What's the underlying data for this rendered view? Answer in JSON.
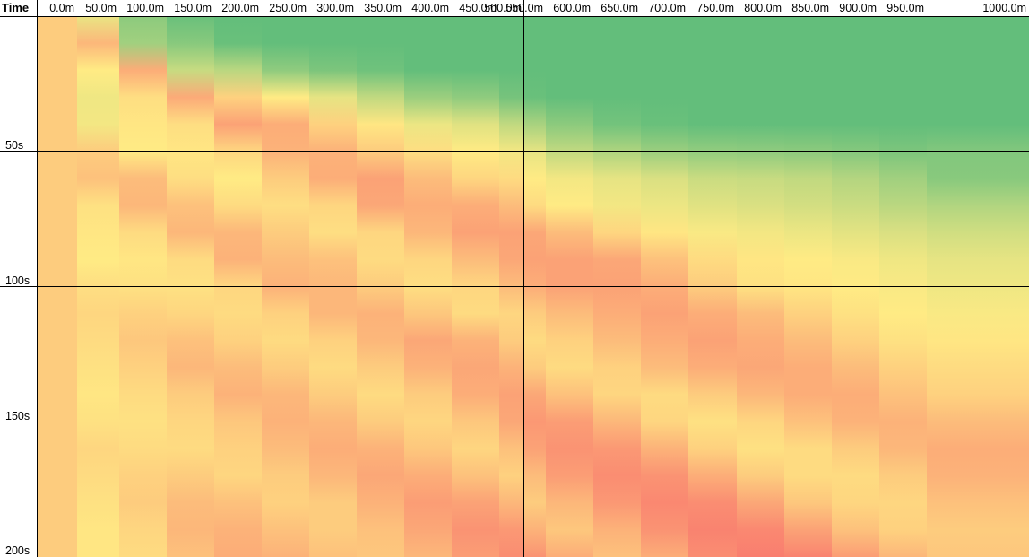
{
  "chart_data": {
    "type": "heatmap",
    "corner_label": "Time",
    "x_tick_labels": [
      "0.0m",
      "50.0m",
      "100.0m",
      "150.0m",
      "200.0m",
      "250.0m",
      "300.0m",
      "350.0m",
      "400.0m",
      "450.0m",
      "500.0m",
      "550.0m",
      "600.0m",
      "650.0m",
      "700.0m",
      "750.0m",
      "800.0m",
      "850.0m",
      "900.0m",
      "950.0m",
      "1000.0m"
    ],
    "x_values_m": [
      0,
      50,
      100,
      150,
      200,
      250,
      300,
      350,
      400,
      450,
      500,
      550,
      600,
      650,
      700,
      750,
      800,
      850,
      900,
      950,
      1000
    ],
    "y_tick_labels": [
      "50s",
      "100s",
      "150s",
      "200s"
    ],
    "y_tick_values_s": [
      50,
      100,
      150,
      200
    ],
    "y_range_s": [
      0,
      200
    ],
    "row_sample_times_s": [
      0,
      10,
      20,
      30,
      40,
      50,
      60,
      70,
      80,
      90,
      100,
      110,
      120,
      130,
      140,
      150,
      160,
      170,
      180,
      190,
      200
    ],
    "color_scale": {
      "stops": [
        "#63be7b",
        "#ffeb84",
        "#f8696b"
      ],
      "domain": [
        0,
        1
      ],
      "low": "green",
      "mid": "yellow",
      "high": "red"
    },
    "grid": "major lines every 50s and at 500.0m",
    "values": [
      [
        0.62,
        0.43,
        0.13,
        0.02,
        0.0,
        0.0,
        0.0,
        0.0,
        0.0,
        0.0,
        0.0,
        0.0,
        0.0,
        0.0,
        0.0,
        0.0,
        0.0,
        0.0,
        0.0,
        0.0,
        0.0
      ],
      [
        0.62,
        0.7,
        0.2,
        0.12,
        0.02,
        0.0,
        0.0,
        0.0,
        0.0,
        0.0,
        0.0,
        0.0,
        0.0,
        0.0,
        0.0,
        0.0,
        0.0,
        0.0,
        0.0,
        0.0,
        0.0
      ],
      [
        0.62,
        0.5,
        0.74,
        0.32,
        0.28,
        0.14,
        0.08,
        0.04,
        0.0,
        0.0,
        0.0,
        0.0,
        0.0,
        0.0,
        0.0,
        0.0,
        0.0,
        0.0,
        0.0,
        0.0,
        0.0
      ],
      [
        0.62,
        0.45,
        0.55,
        0.75,
        0.6,
        0.5,
        0.42,
        0.3,
        0.18,
        0.14,
        0.06,
        0.02,
        0.0,
        0.0,
        0.0,
        0.0,
        0.0,
        0.0,
        0.0,
        0.0,
        0.0
      ],
      [
        0.62,
        0.46,
        0.52,
        0.55,
        0.78,
        0.74,
        0.6,
        0.52,
        0.44,
        0.4,
        0.3,
        0.22,
        0.13,
        0.05,
        0.02,
        0.0,
        0.0,
        0.0,
        0.0,
        0.0,
        0.0
      ],
      [
        0.62,
        0.62,
        0.5,
        0.52,
        0.58,
        0.72,
        0.72,
        0.62,
        0.55,
        0.5,
        0.46,
        0.42,
        0.3,
        0.24,
        0.18,
        0.15,
        0.14,
        0.13,
        0.11,
        0.08,
        0.1
      ],
      [
        0.62,
        0.66,
        0.68,
        0.55,
        0.5,
        0.62,
        0.74,
        0.78,
        0.68,
        0.58,
        0.56,
        0.5,
        0.46,
        0.42,
        0.38,
        0.33,
        0.32,
        0.3,
        0.26,
        0.2,
        0.12
      ],
      [
        0.62,
        0.54,
        0.7,
        0.66,
        0.56,
        0.55,
        0.58,
        0.76,
        0.74,
        0.74,
        0.68,
        0.56,
        0.5,
        0.46,
        0.44,
        0.4,
        0.38,
        0.36,
        0.33,
        0.28,
        0.25
      ],
      [
        0.62,
        0.52,
        0.56,
        0.7,
        0.7,
        0.62,
        0.55,
        0.58,
        0.7,
        0.78,
        0.78,
        0.76,
        0.68,
        0.58,
        0.52,
        0.48,
        0.46,
        0.44,
        0.41,
        0.38,
        0.35
      ],
      [
        0.62,
        0.5,
        0.52,
        0.56,
        0.72,
        0.68,
        0.66,
        0.56,
        0.58,
        0.68,
        0.76,
        0.78,
        0.78,
        0.76,
        0.66,
        0.56,
        0.52,
        0.5,
        0.48,
        0.45,
        0.42
      ],
      [
        0.62,
        0.55,
        0.54,
        0.54,
        0.58,
        0.72,
        0.7,
        0.62,
        0.55,
        0.58,
        0.68,
        0.74,
        0.78,
        0.78,
        0.74,
        0.62,
        0.54,
        0.52,
        0.5,
        0.48,
        0.45
      ],
      [
        0.62,
        0.58,
        0.6,
        0.58,
        0.56,
        0.6,
        0.7,
        0.72,
        0.64,
        0.56,
        0.58,
        0.62,
        0.68,
        0.74,
        0.78,
        0.74,
        0.68,
        0.6,
        0.54,
        0.5,
        0.48
      ],
      [
        0.62,
        0.56,
        0.64,
        0.66,
        0.6,
        0.56,
        0.6,
        0.7,
        0.76,
        0.72,
        0.62,
        0.56,
        0.6,
        0.68,
        0.74,
        0.78,
        0.74,
        0.68,
        0.6,
        0.54,
        0.52
      ],
      [
        0.62,
        0.54,
        0.6,
        0.7,
        0.68,
        0.62,
        0.56,
        0.62,
        0.72,
        0.76,
        0.72,
        0.62,
        0.56,
        0.6,
        0.68,
        0.74,
        0.76,
        0.74,
        0.68,
        0.6,
        0.56
      ],
      [
        0.62,
        0.52,
        0.56,
        0.62,
        0.72,
        0.7,
        0.62,
        0.56,
        0.62,
        0.74,
        0.78,
        0.76,
        0.66,
        0.58,
        0.56,
        0.62,
        0.7,
        0.74,
        0.74,
        0.66,
        0.6
      ],
      [
        0.62,
        0.54,
        0.54,
        0.58,
        0.64,
        0.72,
        0.7,
        0.62,
        0.58,
        0.64,
        0.76,
        0.82,
        0.8,
        0.7,
        0.58,
        0.54,
        0.58,
        0.66,
        0.72,
        0.72,
        0.68
      ],
      [
        0.62,
        0.58,
        0.56,
        0.56,
        0.6,
        0.68,
        0.74,
        0.72,
        0.64,
        0.58,
        0.66,
        0.78,
        0.84,
        0.82,
        0.72,
        0.6,
        0.54,
        0.56,
        0.62,
        0.7,
        0.74
      ],
      [
        0.62,
        0.56,
        0.6,
        0.62,
        0.58,
        0.62,
        0.7,
        0.76,
        0.74,
        0.66,
        0.6,
        0.68,
        0.8,
        0.86,
        0.84,
        0.74,
        0.62,
        0.56,
        0.56,
        0.62,
        0.72
      ],
      [
        0.62,
        0.54,
        0.62,
        0.68,
        0.66,
        0.6,
        0.62,
        0.72,
        0.8,
        0.78,
        0.7,
        0.62,
        0.7,
        0.82,
        0.88,
        0.86,
        0.76,
        0.64,
        0.58,
        0.58,
        0.66
      ],
      [
        0.62,
        0.52,
        0.58,
        0.7,
        0.72,
        0.66,
        0.62,
        0.66,
        0.76,
        0.84,
        0.82,
        0.72,
        0.64,
        0.72,
        0.84,
        0.9,
        0.88,
        0.78,
        0.66,
        0.6,
        0.62
      ],
      [
        0.62,
        0.52,
        0.56,
        0.66,
        0.74,
        0.72,
        0.66,
        0.64,
        0.7,
        0.8,
        0.86,
        0.84,
        0.74,
        0.66,
        0.74,
        0.86,
        0.92,
        0.9,
        0.8,
        0.7,
        0.64
      ]
    ]
  }
}
